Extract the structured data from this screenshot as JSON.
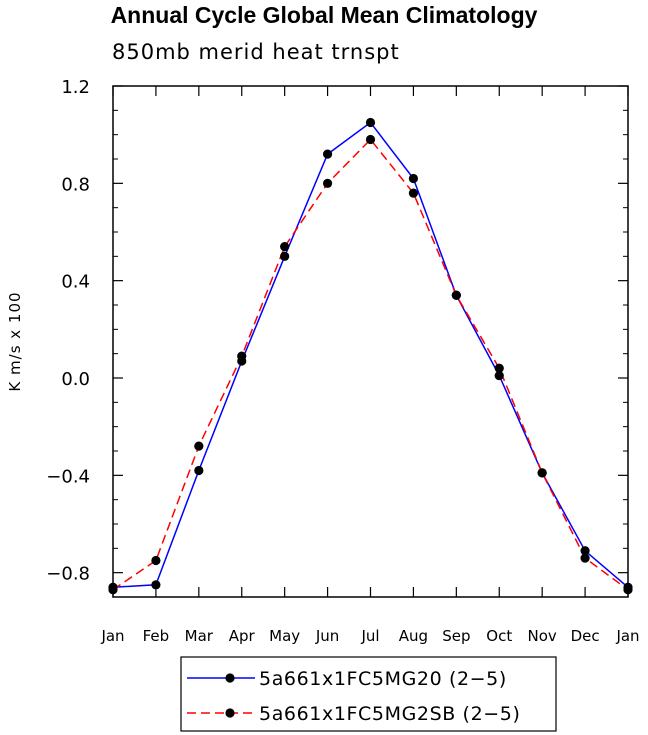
{
  "chart_data": {
    "type": "line",
    "title": "Annual Cycle Global Mean Climatology",
    "subtitle": "850mb merid heat trnspt",
    "xlabel": "",
    "ylabel": "K m/s x 100",
    "categories": [
      "Jan",
      "Feb",
      "Mar",
      "Apr",
      "May",
      "Jun",
      "Jul",
      "Aug",
      "Sep",
      "Oct",
      "Nov",
      "Dec",
      "Jan"
    ],
    "y_ticks": [
      -0.8,
      -0.4,
      0.0,
      0.4,
      0.8,
      1.2
    ],
    "y_tick_labels": [
      "−0.8",
      "−0.4",
      "0.0",
      "0.4",
      "0.8",
      "1.2"
    ],
    "ylim": [
      -0.9,
      1.2
    ],
    "grid": false,
    "legend_position": "bottom-center",
    "series": [
      {
        "name": "5a661x1FC5MG20 (2−5)",
        "color": "#0000ff",
        "dash": "solid",
        "values": [
          -0.86,
          -0.85,
          -0.38,
          0.07,
          0.5,
          0.92,
          1.05,
          0.82,
          0.34,
          0.01,
          -0.39,
          -0.71,
          -0.86
        ]
      },
      {
        "name": "5a661x1FC5MG2SB (2−5)",
        "color": "#ff0000",
        "dash": "dashed",
        "values": [
          -0.87,
          -0.75,
          -0.28,
          0.09,
          0.54,
          0.8,
          0.98,
          0.76,
          0.34,
          0.04,
          -0.39,
          -0.74,
          -0.87
        ]
      }
    ]
  }
}
